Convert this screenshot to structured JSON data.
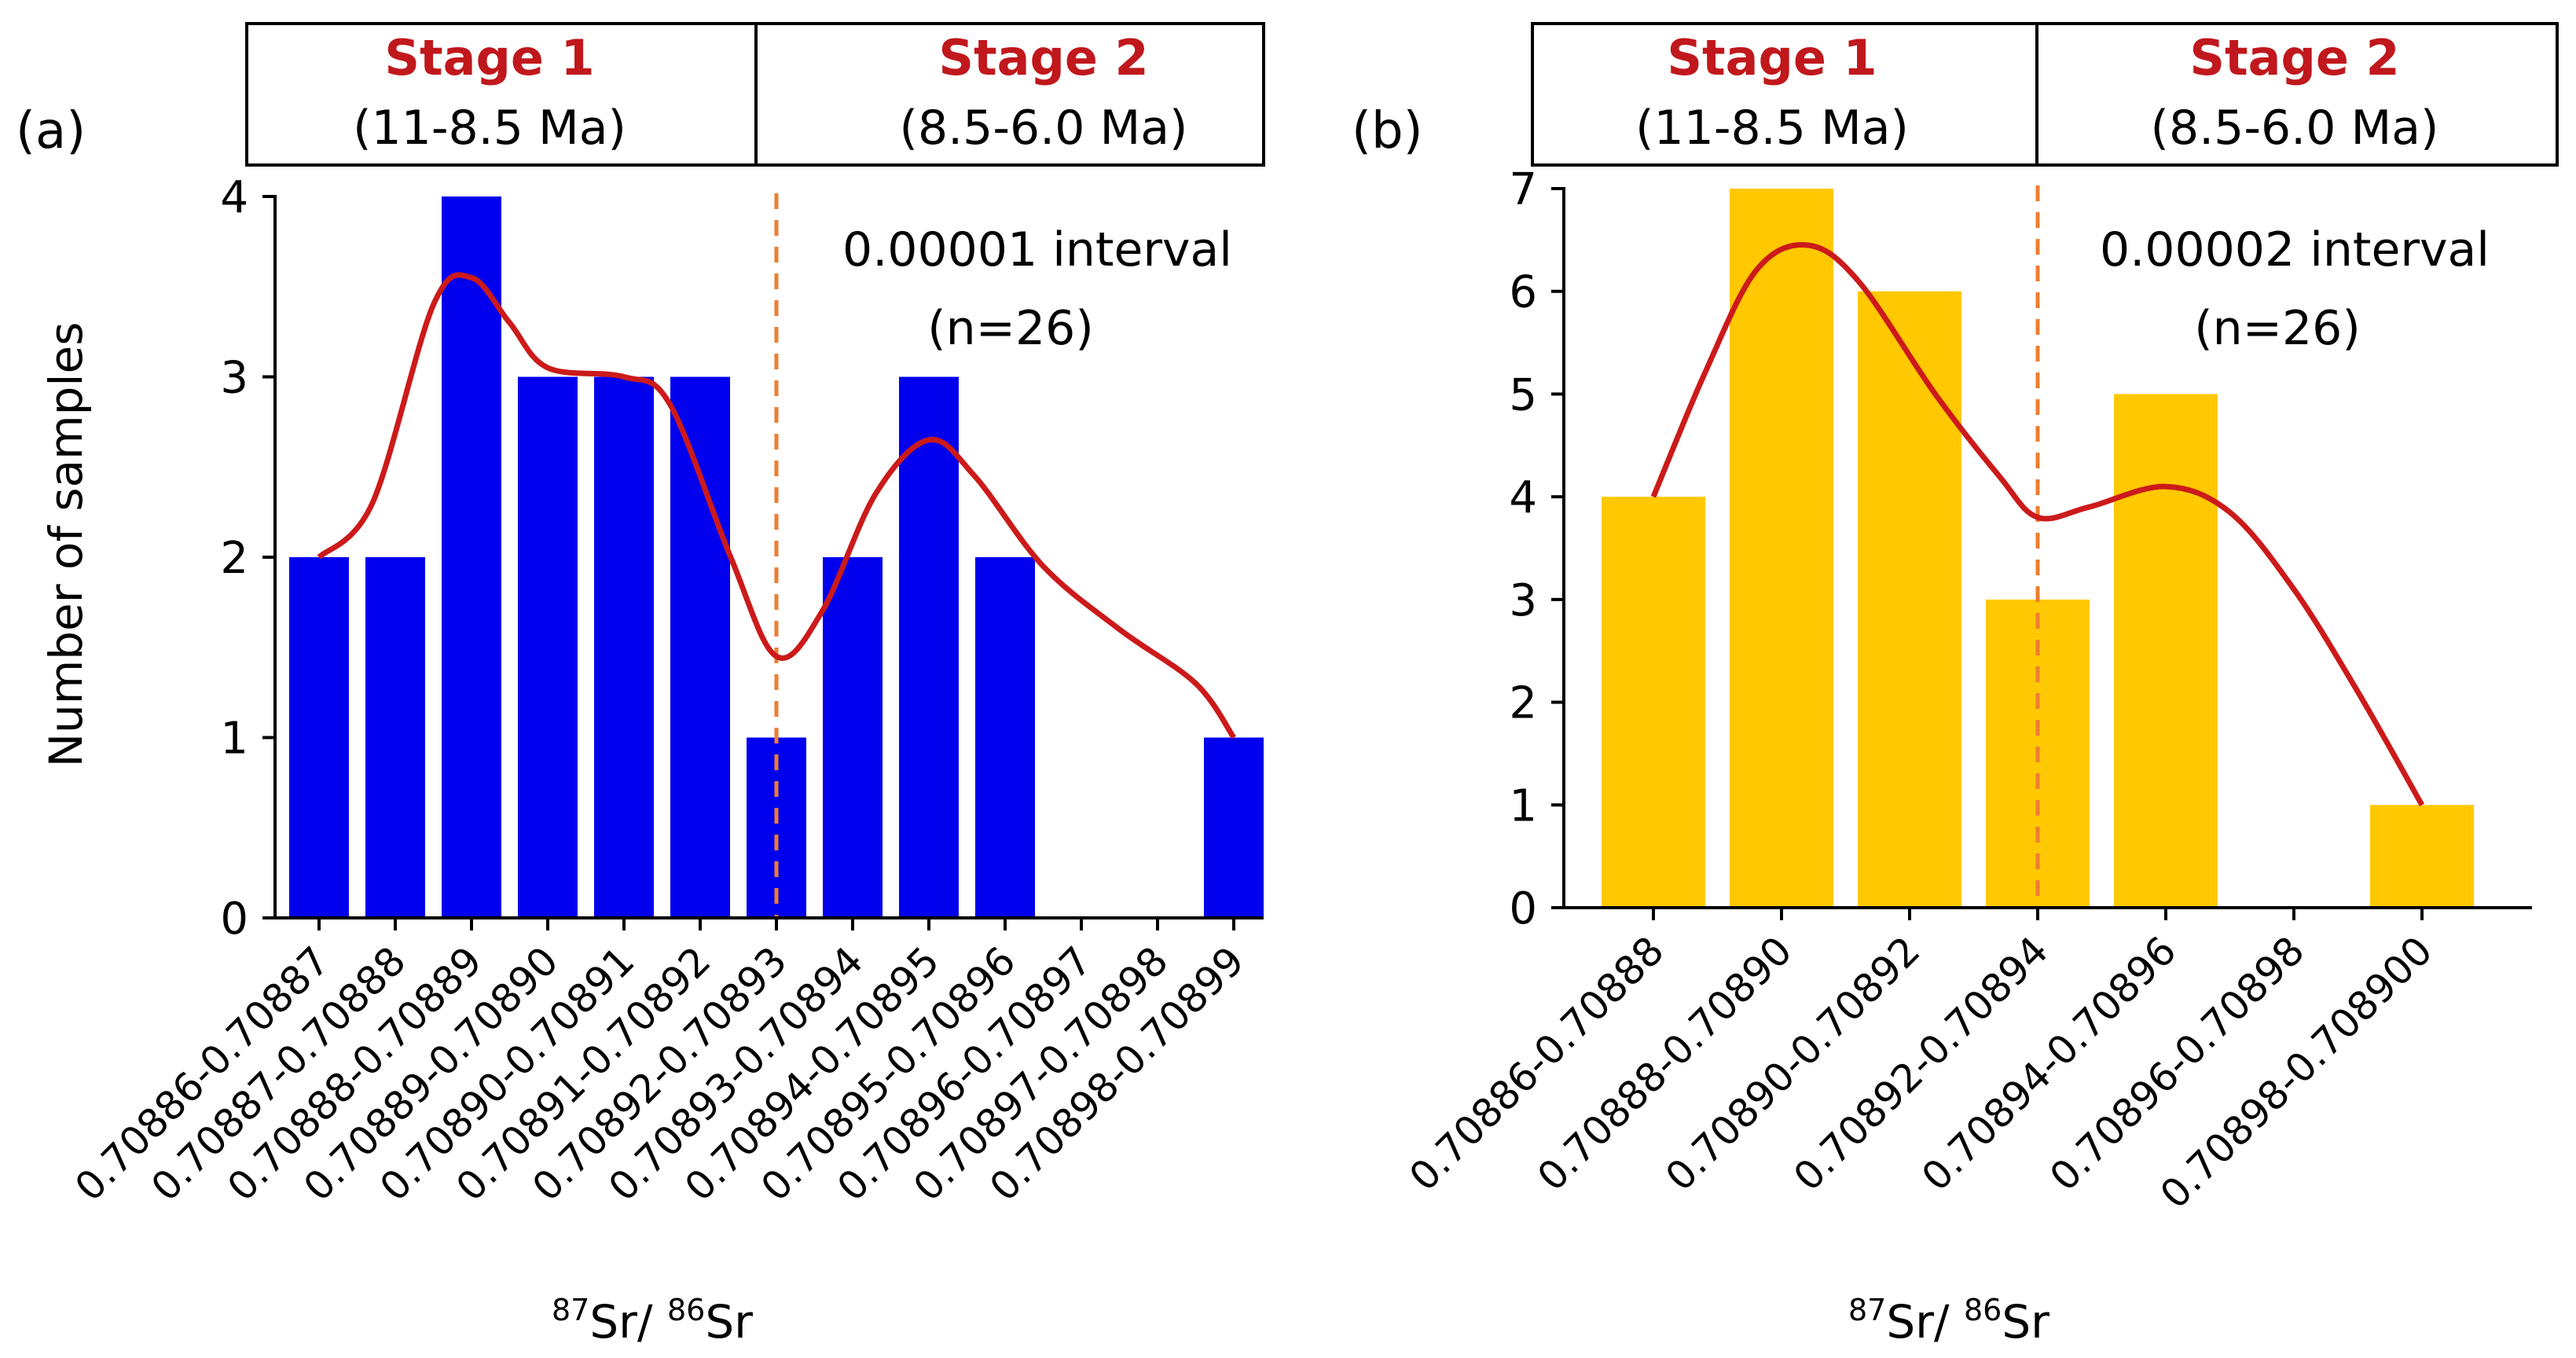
{
  "colors": {
    "bar_a": "#0000ee",
    "bar_b": "#ffc800",
    "curve": "#cc1a1a",
    "stage": "#c0181c",
    "divider": "#ee7d31",
    "axis": "#000000"
  },
  "chart_data": [
    {
      "type": "bar",
      "panel_label": "(a)",
      "stage1": {
        "title": "Stage 1",
        "range": "(11-8.5 Ma)"
      },
      "stage2": {
        "title": "Stage 2",
        "range": "(8.5-6.0 Ma)"
      },
      "annotation": {
        "interval": "0.00001 interval",
        "n": "(n=26)"
      },
      "ylabel": "Number of samples",
      "xlabel": {
        "sup1": "87",
        "el1": "Sr/ ",
        "sup2": "86",
        "el2": "Sr"
      },
      "ylim": [
        0,
        4
      ],
      "yticks": [
        "0",
        "1",
        "2",
        "3",
        "4"
      ],
      "categories": [
        "0.70886-0.70887",
        "0.70887-0.70888",
        "0.70888-0.70889",
        "0.70889-0.70890",
        "0.70890-0.70891",
        "0.70891-0.70892",
        "0.70892-0.70893",
        "0.70893-0.70894",
        "0.70894-0.70895",
        "0.70895-0.70896",
        "0.70896-0.70897",
        "0.70897-0.70898",
        "0.70898-0.70899"
      ],
      "values": [
        2,
        2,
        4,
        3,
        3,
        3,
        1,
        2,
        3,
        2,
        0,
        0,
        1
      ],
      "smooth_curve": [
        [
          0,
          2.0
        ],
        [
          0.7,
          2.3
        ],
        [
          1.5,
          3.4
        ],
        [
          2,
          3.55
        ],
        [
          2.5,
          3.3
        ],
        [
          3,
          3.05
        ],
        [
          4,
          3.0
        ],
        [
          4.6,
          2.85
        ],
        [
          5.4,
          2.0
        ],
        [
          6,
          1.45
        ],
        [
          6.6,
          1.7
        ],
        [
          7.3,
          2.35
        ],
        [
          8,
          2.65
        ],
        [
          8.6,
          2.45
        ],
        [
          9.5,
          1.95
        ],
        [
          10.5,
          1.6
        ],
        [
          11.5,
          1.3
        ],
        [
          12,
          1.0
        ]
      ],
      "divider_x": 6
    },
    {
      "type": "bar",
      "panel_label": "(b)",
      "stage1": {
        "title": "Stage 1",
        "range": "(11-8.5 Ma)"
      },
      "stage2": {
        "title": "Stage 2",
        "range": "(8.5-6.0 Ma)"
      },
      "annotation": {
        "interval": "0.00002 interval",
        "n": "(n=26)"
      },
      "ylabel": "",
      "xlabel": {
        "sup1": "87",
        "el1": "Sr/ ",
        "sup2": "86",
        "el2": "Sr"
      },
      "ylim": [
        0,
        7
      ],
      "yticks": [
        "0",
        "1",
        "2",
        "3",
        "4",
        "5",
        "6",
        "7"
      ],
      "categories": [
        "0.70886-0.70888",
        "0.70888-0.70890",
        "0.70890-0.70892",
        "0.70892-0.70894",
        "0.70894-0.70896",
        "0.70896-0.70898",
        "0.70898-0.708900"
      ],
      "values": [
        4,
        7,
        6,
        3,
        5,
        0,
        1
      ],
      "smooth_curve": [
        [
          0,
          4.0
        ],
        [
          0.4,
          5.2
        ],
        [
          0.8,
          6.2
        ],
        [
          1.2,
          6.45
        ],
        [
          1.6,
          6.1
        ],
        [
          2.2,
          5.0
        ],
        [
          2.7,
          4.2
        ],
        [
          3,
          3.8
        ],
        [
          3.4,
          3.9
        ],
        [
          4,
          4.1
        ],
        [
          4.5,
          3.85
        ],
        [
          5,
          3.1
        ],
        [
          5.5,
          2.1
        ],
        [
          6,
          1.0
        ]
      ],
      "divider_x": 3
    }
  ]
}
